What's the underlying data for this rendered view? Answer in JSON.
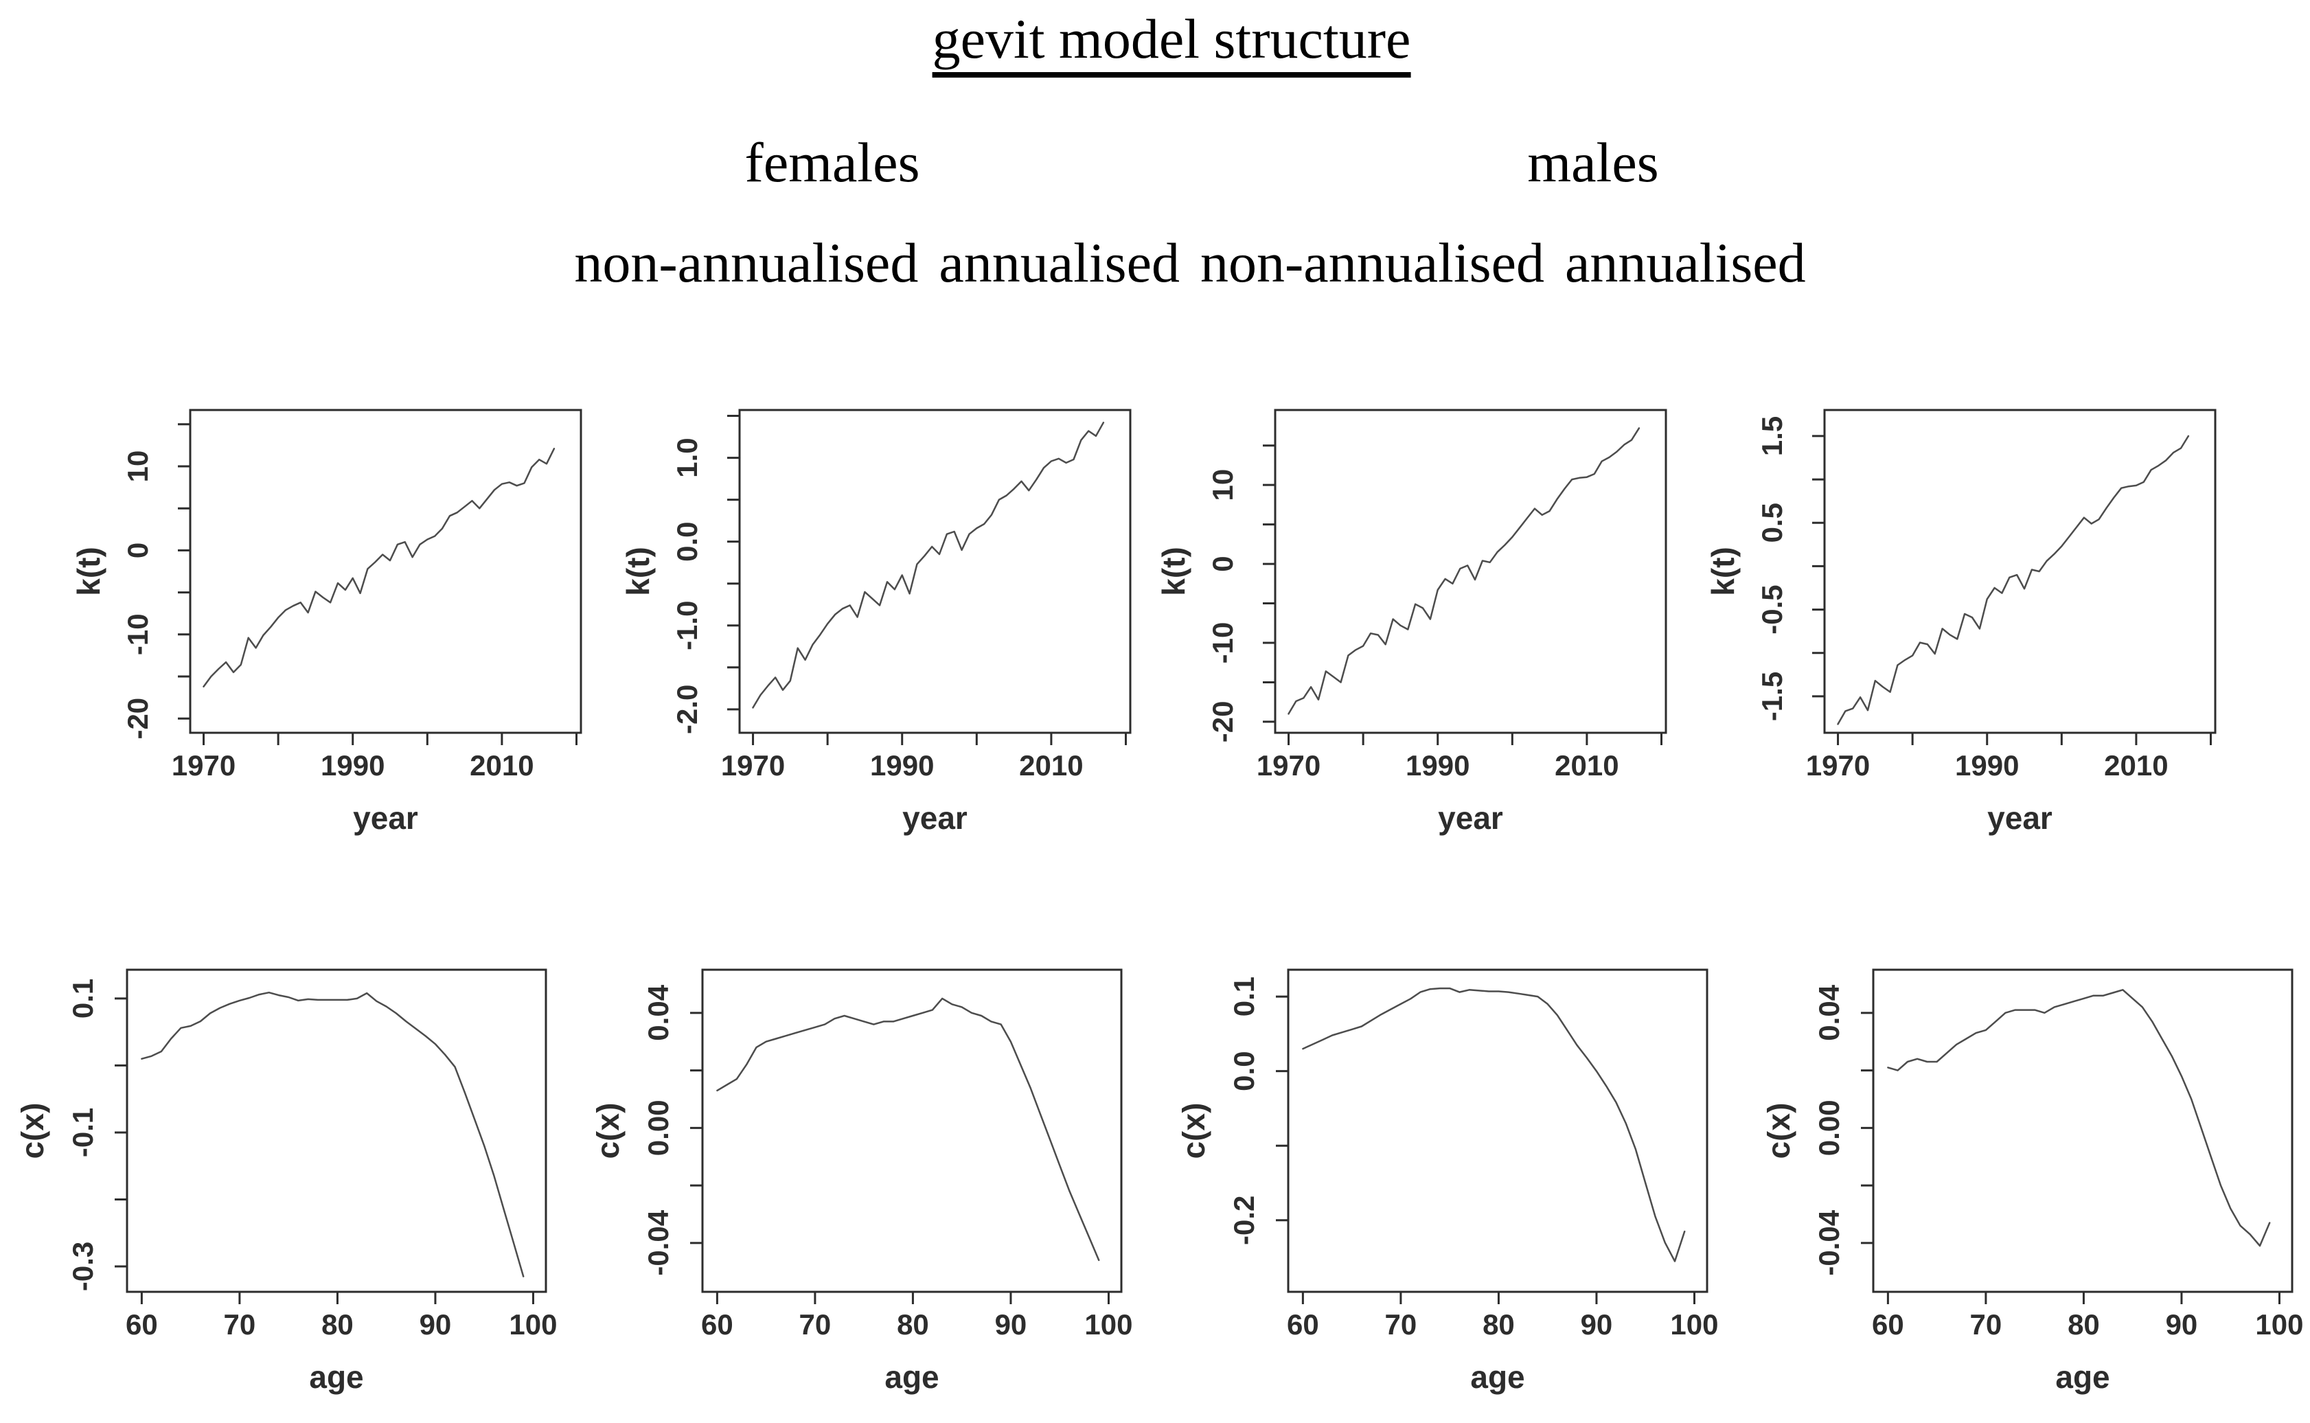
{
  "header": {
    "title": "gevit model structure",
    "groups": [
      {
        "label": "females"
      },
      {
        "label": "males"
      }
    ],
    "column_labels": [
      "non-annualised",
      "annualised",
      "non-annualised",
      "annualised"
    ]
  },
  "style": {
    "background": "#ffffff",
    "axis_color": "#2d2d2d",
    "line_color": "#4d4d4d",
    "text_color": "#2d2d2d"
  },
  "chart_data": [
    {
      "id": "kt-females-non-annualised",
      "type": "line",
      "group": "females",
      "variant": "non-annualised",
      "title": "",
      "xlabel": "year",
      "ylabel": "k(t)",
      "x_start": 1970,
      "x_step": 1,
      "values": [
        -16.2,
        -15.0,
        -14.1,
        -13.3,
        -14.5,
        -13.6,
        -10.4,
        -11.6,
        -10.1,
        -9.1,
        -8.0,
        -7.1,
        -6.6,
        -6.2,
        -7.4,
        -4.9,
        -5.6,
        -6.2,
        -3.9,
        -4.7,
        -3.3,
        -5.1,
        -2.2,
        -1.4,
        -0.5,
        -1.2,
        0.7,
        1.0,
        -0.8,
        0.7,
        1.3,
        1.7,
        2.6,
        4.1,
        4.5,
        5.2,
        5.9,
        5.0,
        6.1,
        7.2,
        7.9,
        8.1,
        7.7,
        8.0,
        9.9,
        10.8,
        10.3,
        12.1
      ],
      "xlim": [
        1968.2,
        2020.6
      ],
      "ylim": [
        -21.7,
        16.7
      ],
      "grid": false,
      "legend": null,
      "xticks": [
        {
          "v": 1970,
          "label": "1970"
        },
        {
          "v": 1980
        },
        {
          "v": 1990,
          "label": "1990"
        },
        {
          "v": 2000
        },
        {
          "v": 2010,
          "label": "2010"
        },
        {
          "v": 2020
        }
      ],
      "yticks": [
        {
          "v": -20,
          "label": "-20"
        },
        {
          "v": -15
        },
        {
          "v": -10,
          "label": "-10"
        },
        {
          "v": -5
        },
        {
          "v": 0,
          "label": "0"
        },
        {
          "v": 5
        },
        {
          "v": 10,
          "label": "10"
        },
        {
          "v": 15
        }
      ]
    },
    {
      "id": "kt-females-annualised",
      "type": "line",
      "group": "females",
      "variant": "annualised",
      "title": "",
      "xlabel": "year",
      "ylabel": "k(t)",
      "x_start": 1970,
      "x_step": 1,
      "values": [
        -1.98,
        -1.83,
        -1.72,
        -1.62,
        -1.77,
        -1.66,
        -1.27,
        -1.41,
        -1.23,
        -1.11,
        -0.98,
        -0.87,
        -0.8,
        -0.76,
        -0.9,
        -0.6,
        -0.68,
        -0.76,
        -0.48,
        -0.57,
        -0.4,
        -0.62,
        -0.27,
        -0.17,
        -0.06,
        -0.15,
        0.09,
        0.12,
        -0.1,
        0.09,
        0.16,
        0.21,
        0.32,
        0.5,
        0.55,
        0.63,
        0.72,
        0.61,
        0.74,
        0.88,
        0.96,
        0.99,
        0.94,
        0.98,
        1.21,
        1.32,
        1.26,
        1.42
      ],
      "xlim": [
        1968.2,
        2020.6
      ],
      "ylim": [
        -2.28,
        1.57
      ],
      "grid": false,
      "legend": null,
      "xticks": [
        {
          "v": 1970,
          "label": "1970"
        },
        {
          "v": 1980
        },
        {
          "v": 1990,
          "label": "1990"
        },
        {
          "v": 2000
        },
        {
          "v": 2010,
          "label": "2010"
        },
        {
          "v": 2020
        }
      ],
      "yticks": [
        {
          "v": -2.0,
          "label": "-2.0"
        },
        {
          "v": -1.5
        },
        {
          "v": -1.0,
          "label": "-1.0"
        },
        {
          "v": -0.5
        },
        {
          "v": 0.0,
          "label": "0.0"
        },
        {
          "v": 0.5
        },
        {
          "v": 1.0,
          "label": "1.0"
        },
        {
          "v": 1.5
        }
      ]
    },
    {
      "id": "kt-males-non-annualised",
      "type": "line",
      "group": "males",
      "variant": "non-annualised",
      "title": "",
      "xlabel": "year",
      "ylabel": "k(t)",
      "x_start": 1970,
      "x_step": 1,
      "values": [
        -19.0,
        -17.4,
        -17.0,
        -15.6,
        -17.2,
        -13.6,
        -14.3,
        -15.0,
        -11.6,
        -10.9,
        -10.4,
        -8.8,
        -9.0,
        -10.2,
        -7.0,
        -7.8,
        -8.3,
        -5.1,
        -5.6,
        -7.0,
        -3.3,
        -1.9,
        -2.5,
        -0.6,
        -0.2,
        -2.0,
        0.4,
        0.2,
        1.5,
        2.4,
        3.4,
        4.6,
        5.8,
        7.0,
        6.2,
        6.7,
        8.2,
        9.5,
        10.7,
        10.9,
        11.0,
        11.4,
        13.0,
        13.5,
        14.2,
        15.1,
        15.7,
        17.2
      ],
      "xlim": [
        1968.2,
        2020.6
      ],
      "ylim": [
        -21.4,
        19.5
      ],
      "grid": false,
      "legend": null,
      "xticks": [
        {
          "v": 1970,
          "label": "1970"
        },
        {
          "v": 1980
        },
        {
          "v": 1990,
          "label": "1990"
        },
        {
          "v": 2000
        },
        {
          "v": 2010,
          "label": "2010"
        },
        {
          "v": 2020
        }
      ],
      "yticks": [
        {
          "v": -20,
          "label": "-20"
        },
        {
          "v": -15
        },
        {
          "v": -10,
          "label": "-10"
        },
        {
          "v": -5
        },
        {
          "v": 0,
          "label": "0"
        },
        {
          "v": 5
        },
        {
          "v": 10,
          "label": "10"
        },
        {
          "v": 15
        }
      ]
    },
    {
      "id": "kt-males-annualised",
      "type": "line",
      "group": "males",
      "variant": "annualised",
      "title": "",
      "xlabel": "year",
      "ylabel": "k(t)",
      "x_start": 1970,
      "x_step": 1,
      "values": [
        -1.82,
        -1.67,
        -1.64,
        -1.51,
        -1.66,
        -1.32,
        -1.39,
        -1.45,
        -1.14,
        -1.08,
        -1.03,
        -0.88,
        -0.9,
        -1.01,
        -0.72,
        -0.79,
        -0.84,
        -0.55,
        -0.59,
        -0.72,
        -0.38,
        -0.25,
        -0.31,
        -0.13,
        -0.1,
        -0.26,
        -0.04,
        -0.06,
        0.06,
        0.14,
        0.23,
        0.34,
        0.45,
        0.56,
        0.49,
        0.54,
        0.67,
        0.79,
        0.9,
        0.92,
        0.93,
        0.97,
        1.11,
        1.16,
        1.22,
        1.31,
        1.36,
        1.5
      ],
      "xlim": [
        1968.2,
        2020.6
      ],
      "ylim": [
        -1.92,
        1.8
      ],
      "grid": false,
      "legend": null,
      "xticks": [
        {
          "v": 1970,
          "label": "1970"
        },
        {
          "v": 1980
        },
        {
          "v": 1990,
          "label": "1990"
        },
        {
          "v": 2000
        },
        {
          "v": 2010,
          "label": "2010"
        },
        {
          "v": 2020
        }
      ],
      "yticks": [
        {
          "v": -1.5,
          "label": "-1.5"
        },
        {
          "v": -1.0
        },
        {
          "v": -0.5,
          "label": "-0.5"
        },
        {
          "v": 0.0
        },
        {
          "v": 0.5,
          "label": "0.5"
        },
        {
          "v": 1.0
        },
        {
          "v": 1.5,
          "label": "1.5"
        }
      ]
    },
    {
      "id": "cx-females-non-annualised",
      "type": "line",
      "group": "females",
      "variant": "non-annualised",
      "title": "",
      "xlabel": "age",
      "ylabel": "c(x)",
      "x_start": 60,
      "x_step": 1,
      "values": [
        0.01,
        0.014,
        0.021,
        0.04,
        0.056,
        0.059,
        0.066,
        0.078,
        0.086,
        0.092,
        0.097,
        0.101,
        0.106,
        0.109,
        0.105,
        0.102,
        0.097,
        0.099,
        0.098,
        0.098,
        0.098,
        0.098,
        0.1,
        0.108,
        0.096,
        0.088,
        0.078,
        0.066,
        0.055,
        0.044,
        0.032,
        0.016,
        -0.002,
        -0.04,
        -0.08,
        -0.12,
        -0.165,
        -0.215,
        -0.265,
        -0.315
      ],
      "xlim": [
        58.5,
        101.3
      ],
      "ylim": [
        -0.338,
        0.143
      ],
      "grid": false,
      "legend": null,
      "xticks": [
        {
          "v": 60,
          "label": "60"
        },
        {
          "v": 70,
          "label": "70"
        },
        {
          "v": 80,
          "label": "80"
        },
        {
          "v": 90,
          "label": "90"
        },
        {
          "v": 100,
          "label": "100"
        }
      ],
      "yticks": [
        {
          "v": -0.3,
          "label": "-0.3"
        },
        {
          "v": -0.2
        },
        {
          "v": -0.1,
          "label": "-0.1"
        },
        {
          "v": 0.0
        },
        {
          "v": 0.1,
          "label": "0.1"
        }
      ]
    },
    {
      "id": "cx-females-annualised",
      "type": "line",
      "group": "females",
      "variant": "annualised",
      "title": "",
      "xlabel": "age",
      "ylabel": "c(x)",
      "x_start": 60,
      "x_step": 1,
      "values": [
        0.013,
        0.015,
        0.017,
        0.022,
        0.028,
        0.03,
        0.031,
        0.032,
        0.033,
        0.034,
        0.035,
        0.036,
        0.038,
        0.039,
        0.038,
        0.037,
        0.036,
        0.037,
        0.037,
        0.038,
        0.039,
        0.04,
        0.041,
        0.045,
        0.043,
        0.042,
        0.04,
        0.039,
        0.037,
        0.036,
        0.03,
        0.022,
        0.014,
        0.005,
        -0.004,
        -0.013,
        -0.022,
        -0.03,
        -0.038,
        -0.046
      ],
      "xlim": [
        58.5,
        101.3
      ],
      "ylim": [
        -0.057,
        0.055
      ],
      "grid": false,
      "legend": null,
      "xticks": [
        {
          "v": 60,
          "label": "60"
        },
        {
          "v": 70,
          "label": "70"
        },
        {
          "v": 80,
          "label": "80"
        },
        {
          "v": 90,
          "label": "90"
        },
        {
          "v": 100,
          "label": "100"
        }
      ],
      "yticks": [
        {
          "v": -0.04,
          "label": "-0.04"
        },
        {
          "v": -0.02
        },
        {
          "v": 0,
          "label": "0.00"
        },
        {
          "v": 0.02
        },
        {
          "v": 0.04,
          "label": "0.04"
        }
      ]
    },
    {
      "id": "cx-males-non-annualised",
      "type": "line",
      "group": "males",
      "variant": "non-annualised",
      "title": "",
      "xlabel": "age",
      "ylabel": "c(x)",
      "x_start": 60,
      "x_step": 1,
      "values": [
        0.03,
        0.036,
        0.042,
        0.048,
        0.052,
        0.056,
        0.06,
        0.068,
        0.076,
        0.083,
        0.09,
        0.097,
        0.106,
        0.11,
        0.111,
        0.111,
        0.106,
        0.109,
        0.108,
        0.107,
        0.107,
        0.106,
        0.104,
        0.102,
        0.1,
        0.09,
        0.075,
        0.055,
        0.035,
        0.018,
        0.0,
        -0.02,
        -0.042,
        -0.07,
        -0.105,
        -0.15,
        -0.195,
        -0.23,
        -0.255,
        -0.215
      ],
      "xlim": [
        58.5,
        101.3
      ],
      "ylim": [
        -0.296,
        0.136
      ],
      "grid": false,
      "legend": null,
      "xticks": [
        {
          "v": 60,
          "label": "60"
        },
        {
          "v": 70,
          "label": "70"
        },
        {
          "v": 80,
          "label": "80"
        },
        {
          "v": 90,
          "label": "90"
        },
        {
          "v": 100,
          "label": "100"
        }
      ],
      "yticks": [
        {
          "v": -0.2,
          "label": "-0.2"
        },
        {
          "v": -0.1
        },
        {
          "v": 0.0,
          "label": "0.0"
        },
        {
          "v": 0.1,
          "label": "0.1"
        }
      ]
    },
    {
      "id": "cx-males-annualised",
      "type": "line",
      "group": "males",
      "variant": "annualised",
      "title": "",
      "xlabel": "age",
      "ylabel": "c(x)",
      "x_start": 60,
      "x_step": 1,
      "values": [
        0.021,
        0.02,
        0.023,
        0.024,
        0.023,
        0.023,
        0.026,
        0.029,
        0.031,
        0.033,
        0.034,
        0.037,
        0.04,
        0.041,
        0.041,
        0.041,
        0.04,
        0.042,
        0.043,
        0.044,
        0.045,
        0.046,
        0.046,
        0.047,
        0.048,
        0.045,
        0.042,
        0.037,
        0.031,
        0.025,
        0.018,
        0.01,
        0.0,
        -0.01,
        -0.02,
        -0.028,
        -0.034,
        -0.037,
        -0.041,
        -0.033
      ],
      "xlim": [
        58.5,
        101.3
      ],
      "ylim": [
        -0.057,
        0.055
      ],
      "grid": false,
      "legend": null,
      "xticks": [
        {
          "v": 60,
          "label": "60"
        },
        {
          "v": 70,
          "label": "70"
        },
        {
          "v": 80,
          "label": "80"
        },
        {
          "v": 90,
          "label": "90"
        },
        {
          "v": 100,
          "label": "100"
        }
      ],
      "yticks": [
        {
          "v": -0.04,
          "label": "-0.04"
        },
        {
          "v": -0.02
        },
        {
          "v": 0,
          "label": "0.00"
        },
        {
          "v": 0.02
        },
        {
          "v": 0.04,
          "label": "0.04"
        }
      ]
    }
  ]
}
